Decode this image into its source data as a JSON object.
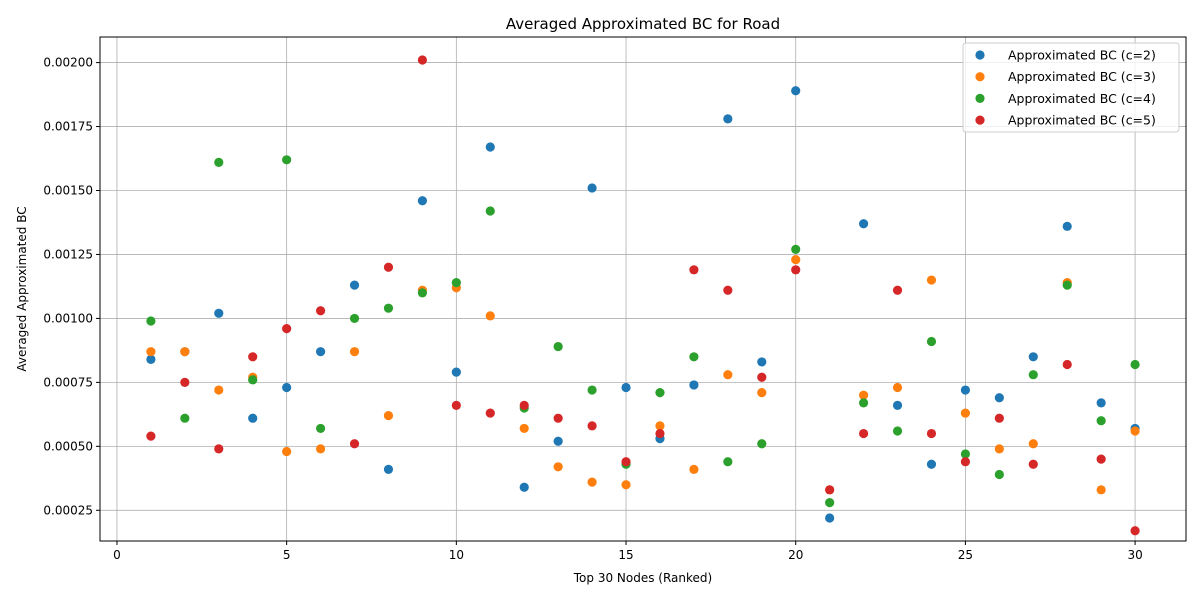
{
  "chart_data": {
    "type": "scatter",
    "title": "Averaged Approximated BC for Road",
    "xlabel": "Top 30 Nodes (Ranked)",
    "ylabel": "Averaged Approximated BC",
    "xlim": [
      -0.5,
      31.5
    ],
    "ylim": [
      0.00013,
      0.0021
    ],
    "xticks": [
      0,
      5,
      10,
      15,
      20,
      25,
      30
    ],
    "yticks": [
      0.00025,
      0.0005,
      0.00075,
      0.001,
      0.00125,
      0.0015,
      0.00175,
      0.002
    ],
    "ytick_labels": [
      "0.00025",
      "0.00050",
      "0.00075",
      "0.00100",
      "0.00125",
      "0.00150",
      "0.00175",
      "0.00200"
    ],
    "grid": true,
    "legend_position": "top-right",
    "x": [
      1,
      2,
      3,
      4,
      5,
      6,
      7,
      8,
      9,
      10,
      11,
      12,
      13,
      14,
      15,
      16,
      17,
      18,
      19,
      20,
      21,
      22,
      23,
      24,
      25,
      26,
      27,
      28,
      29,
      30
    ],
    "series": [
      {
        "name": "Approximated BC (c=2)",
        "color": "#1f77b4",
        "values": [
          0.00084,
          0.00087,
          0.00102,
          0.00061,
          0.00073,
          0.00087,
          0.00113,
          0.00041,
          0.00146,
          0.00079,
          0.00167,
          0.00034,
          0.00052,
          0.00151,
          0.00073,
          0.00053,
          0.00074,
          0.00178,
          0.00083,
          0.00189,
          0.00022,
          0.00137,
          0.00066,
          0.00043,
          0.00072,
          0.00069,
          0.00085,
          0.00136,
          0.00067,
          0.00057
        ]
      },
      {
        "name": "Approximated BC (c=3)",
        "color": "#ff7f0e",
        "values": [
          0.00087,
          0.00087,
          0.00072,
          0.00077,
          0.00048,
          0.00049,
          0.00087,
          0.00062,
          0.00111,
          0.00112,
          0.00101,
          0.00057,
          0.00042,
          0.00036,
          0.00035,
          0.00058,
          0.00041,
          0.00078,
          0.00071,
          0.00123,
          0.00033,
          0.0007,
          0.00073,
          0.00115,
          0.00063,
          0.00049,
          0.00051,
          0.00114,
          0.00033,
          0.00056
        ]
      },
      {
        "name": "Approximated BC (c=4)",
        "color": "#2ca02c",
        "values": [
          0.00099,
          0.00061,
          0.00161,
          0.00076,
          0.00162,
          0.00057,
          0.001,
          0.00104,
          0.0011,
          0.00114,
          0.00142,
          0.00065,
          0.00089,
          0.00072,
          0.00043,
          0.00071,
          0.00085,
          0.00044,
          0.00051,
          0.00127,
          0.00028,
          0.00067,
          0.00056,
          0.00091,
          0.00047,
          0.00039,
          0.00078,
          0.00113,
          0.0006,
          0.00082
        ]
      },
      {
        "name": "Approximated BC (c=5)",
        "color": "#d62728",
        "values": [
          0.00054,
          0.00075,
          0.00049,
          0.00085,
          0.00096,
          0.00103,
          0.00051,
          0.0012,
          0.00201,
          0.00066,
          0.00063,
          0.00066,
          0.00061,
          0.00058,
          0.00044,
          0.00055,
          0.00119,
          0.00111,
          0.00077,
          0.00119,
          0.00033,
          0.00055,
          0.00111,
          0.00055,
          0.00044,
          0.00061,
          0.00043,
          0.00082,
          0.00045,
          0.00017
        ]
      }
    ]
  }
}
